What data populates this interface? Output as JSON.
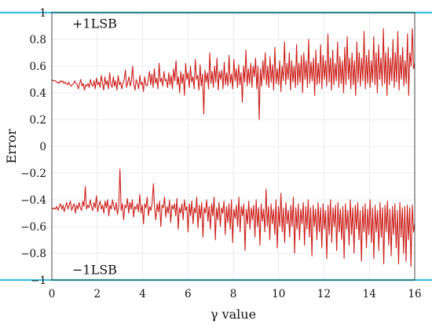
{
  "chart_data": {
    "type": "line",
    "title": "",
    "xlabel": "γ value",
    "ylabel": "Error",
    "xlim": [
      0,
      16
    ],
    "ylim": [
      -1,
      1
    ],
    "xticks": [
      "0",
      "2",
      "4",
      "6",
      "8",
      "10",
      "12",
      "14",
      "16"
    ],
    "yticks": [
      "−1",
      "−0.8",
      "−0.6",
      "−0.4",
      "−0.2",
      "0",
      "0.2",
      "0.4",
      "0.6",
      "0.8",
      "1"
    ],
    "grid": true,
    "legend": "none",
    "annotations": [
      {
        "text": "+1LSB",
        "x": 0.9,
        "y": 0.92
      },
      {
        "text": "−1LSB",
        "x": 0.9,
        "y": -0.92
      }
    ],
    "reference_lines": [
      {
        "y": 1,
        "color": "#3fc0dc"
      },
      {
        "y": -1,
        "color": "#3fc0dc"
      }
    ],
    "series": [
      {
        "name": "",
        "color": "#cc1f1a",
        "x_start": 0,
        "x_end": 16,
        "values": [
          0.5,
          0.49,
          0.49,
          0.49,
          0.48,
          0.48,
          0.47,
          0.49,
          0.48,
          0.49,
          0.47,
          0.48,
          0.47,
          0.46,
          0.48,
          0.46,
          0.45,
          0.46,
          0.47,
          0.49,
          0.47,
          0.46,
          0.43,
          0.47,
          0.5,
          0.45,
          0.47,
          0.42,
          0.46,
          0.45,
          0.47,
          0.44,
          0.5,
          0.46,
          0.45,
          0.49,
          0.43,
          0.51,
          0.46,
          0.48,
          0.44,
          0.53,
          0.47,
          0.42,
          0.52,
          0.46,
          0.49,
          0.43,
          0.55,
          0.46,
          0.44,
          0.52,
          0.45,
          0.49,
          0.42,
          0.53,
          0.46,
          0.48,
          0.43,
          0.47,
          0.5,
          0.57,
          0.44,
          0.48,
          0.52,
          0.45,
          0.49,
          0.6,
          0.46,
          0.42,
          0.5,
          0.47,
          0.43,
          0.53,
          0.46,
          0.48,
          0.41,
          0.52,
          0.46,
          0.45,
          0.5,
          0.56,
          0.46,
          0.54,
          0.44,
          0.58,
          0.47,
          0.51,
          0.43,
          0.62,
          0.48,
          0.51,
          0.45,
          0.56,
          0.49,
          0.5,
          0.44,
          0.55,
          0.46,
          0.53,
          0.43,
          0.58,
          0.49,
          0.64,
          0.46,
          0.52,
          0.4,
          0.56,
          0.47,
          0.54,
          0.38,
          0.62,
          0.5,
          0.55,
          0.44,
          0.6,
          0.48,
          0.52,
          0.43,
          0.65,
          0.5,
          0.53,
          0.42,
          0.61,
          0.45,
          0.54,
          0.24,
          0.57,
          0.48,
          0.55,
          0.43,
          0.7,
          0.47,
          0.56,
          0.44,
          0.6,
          0.48,
          0.66,
          0.42,
          0.56,
          0.5,
          0.57,
          0.43,
          0.63,
          0.46,
          0.55,
          0.45,
          0.68,
          0.47,
          0.54,
          0.43,
          0.65,
          0.49,
          0.58,
          0.44,
          0.61,
          0.46,
          0.55,
          0.33,
          0.6,
          0.48,
          0.72,
          0.45,
          0.58,
          0.47,
          0.62,
          0.44,
          0.6,
          0.52,
          0.66,
          0.43,
          0.6,
          0.2,
          0.58,
          0.45,
          0.64,
          0.5,
          0.7,
          0.46,
          0.6,
          0.44,
          0.67,
          0.48,
          0.61,
          0.42,
          0.74,
          0.47,
          0.58,
          0.46,
          0.64,
          0.41,
          0.6,
          0.49,
          0.78,
          0.46,
          0.62,
          0.5,
          0.7,
          0.42,
          0.64,
          0.48,
          0.6,
          0.44,
          0.76,
          0.46,
          0.62,
          0.48,
          0.68,
          0.4,
          0.7,
          0.5,
          0.64,
          0.44,
          0.8,
          0.47,
          0.63,
          0.49,
          0.66,
          0.38,
          0.72,
          0.46,
          0.62,
          0.47,
          0.76,
          0.43,
          0.68,
          0.5,
          0.64,
          0.45,
          0.84,
          0.48,
          0.66,
          0.42,
          0.72,
          0.46,
          0.62,
          0.49,
          0.78,
          0.44,
          0.67,
          0.47,
          0.64,
          0.4,
          0.74,
          0.46,
          0.82,
          0.5,
          0.66,
          0.43,
          0.7,
          0.46,
          0.64,
          0.38,
          0.78,
          0.48,
          0.7,
          0.45,
          0.66,
          0.49,
          0.86,
          0.43,
          0.68,
          0.47,
          0.72,
          0.44,
          0.64,
          0.48,
          0.82,
          0.46,
          0.7,
          0.4,
          0.76,
          0.5,
          0.66,
          0.45,
          0.88,
          0.47,
          0.7,
          0.38,
          0.74,
          0.46,
          0.66,
          0.49,
          0.8,
          0.44,
          0.7,
          0.48,
          0.86,
          0.42,
          0.68,
          0.5,
          0.74,
          0.45,
          0.64,
          0.47,
          0.84,
          0.38,
          0.7,
          0.6,
          0.88,
          0.58,
          0.62
        ]
      },
      {
        "name": "",
        "color": "#cc1f1a",
        "x_start": 0,
        "x_end": 16,
        "values": [
          -0.46,
          -0.47,
          -0.46,
          -0.47,
          -0.45,
          -0.48,
          -0.45,
          -0.43,
          -0.47,
          -0.44,
          -0.49,
          -0.45,
          -0.42,
          -0.47,
          -0.44,
          -0.41,
          -0.48,
          -0.45,
          -0.43,
          -0.5,
          -0.44,
          -0.47,
          -0.42,
          -0.46,
          -0.48,
          -0.41,
          -0.45,
          -0.3,
          -0.47,
          -0.44,
          -0.46,
          -0.4,
          -0.45,
          -0.48,
          -0.42,
          -0.46,
          -0.37,
          -0.49,
          -0.44,
          -0.41,
          -0.47,
          -0.44,
          -0.5,
          -0.41,
          -0.46,
          -0.4,
          -0.52,
          -0.44,
          -0.47,
          -0.4,
          -0.45,
          -0.48,
          -0.42,
          -0.51,
          -0.45,
          -0.17,
          -0.48,
          -0.43,
          -0.55,
          -0.44,
          -0.46,
          -0.39,
          -0.5,
          -0.42,
          -0.47,
          -0.4,
          -0.53,
          -0.45,
          -0.47,
          -0.43,
          -0.49,
          -0.36,
          -0.5,
          -0.44,
          -0.58,
          -0.43,
          -0.46,
          -0.38,
          -0.52,
          -0.45,
          -0.48,
          -0.42,
          -0.28,
          -0.47,
          -0.55,
          -0.43,
          -0.49,
          -0.41,
          -0.6,
          -0.44,
          -0.46,
          -0.38,
          -0.53,
          -0.45,
          -0.5,
          -0.4,
          -0.57,
          -0.44,
          -0.47,
          -0.43,
          -0.52,
          -0.39,
          -0.62,
          -0.46,
          -0.5,
          -0.43,
          -0.55,
          -0.4,
          -0.48,
          -0.45,
          -0.64,
          -0.43,
          -0.52,
          -0.41,
          -0.58,
          -0.46,
          -0.5,
          -0.38,
          -0.61,
          -0.44,
          -0.54,
          -0.42,
          -0.68,
          -0.46,
          -0.5,
          -0.4,
          -0.56,
          -0.45,
          -0.62,
          -0.43,
          -0.52,
          -0.38,
          -0.7,
          -0.46,
          -0.55,
          -0.42,
          -0.6,
          -0.46,
          -0.5,
          -0.41,
          -0.66,
          -0.45,
          -0.57,
          -0.43,
          -0.62,
          -0.4,
          -0.72,
          -0.47,
          -0.54,
          -0.44,
          -0.6,
          -0.38,
          -0.64,
          -0.45,
          -0.52,
          -0.43,
          -0.78,
          -0.47,
          -0.58,
          -0.41,
          -0.62,
          -0.46,
          -0.55,
          -0.44,
          -0.68,
          -0.4,
          -0.6,
          -0.46,
          -0.74,
          -0.43,
          -0.56,
          -0.47,
          -0.64,
          -0.32,
          -0.6,
          -0.45,
          -0.7,
          -0.43,
          -0.58,
          -0.47,
          -0.66,
          -0.4,
          -0.76,
          -0.45,
          -0.6,
          -0.35,
          -0.64,
          -0.46,
          -0.72,
          -0.42,
          -0.58,
          -0.48,
          -0.68,
          -0.44,
          -0.6,
          -0.38,
          -0.8,
          -0.46,
          -0.62,
          -0.43,
          -0.7,
          -0.47,
          -0.58,
          -0.42,
          -0.74,
          -0.45,
          -0.62,
          -0.4,
          -0.68,
          -0.46,
          -0.82,
          -0.44,
          -0.6,
          -0.47,
          -0.7,
          -0.42,
          -0.64,
          -0.46,
          -0.76,
          -0.43,
          -0.62,
          -0.48,
          -0.84,
          -0.44,
          -0.66,
          -0.4,
          -0.72,
          -0.46,
          -0.6,
          -0.44,
          -0.78,
          -0.42,
          -0.64,
          -0.47,
          -0.7,
          -0.45,
          -0.84,
          -0.43,
          -0.62,
          -0.48,
          -0.74,
          -0.4,
          -0.66,
          -0.46,
          -0.8,
          -0.44,
          -0.62,
          -0.42,
          -0.7,
          -0.48,
          -0.86,
          -0.45,
          -0.64,
          -0.43,
          -0.76,
          -0.47,
          -0.66,
          -0.4,
          -0.72,
          -0.46,
          -0.84,
          -0.44,
          -0.64,
          -0.48,
          -0.78,
          -0.42,
          -0.68,
          -0.46,
          -0.88,
          -0.44,
          -0.64,
          -0.41,
          -0.74,
          -0.47,
          -0.82,
          -0.45,
          -0.66,
          -0.43,
          -0.76,
          -0.48,
          -0.88,
          -0.42,
          -0.68,
          -0.46,
          -0.8,
          -0.45,
          -0.86,
          -0.44,
          -0.7,
          -0.46,
          -0.9,
          -0.44,
          -0.64,
          -0.58
        ]
      }
    ]
  }
}
